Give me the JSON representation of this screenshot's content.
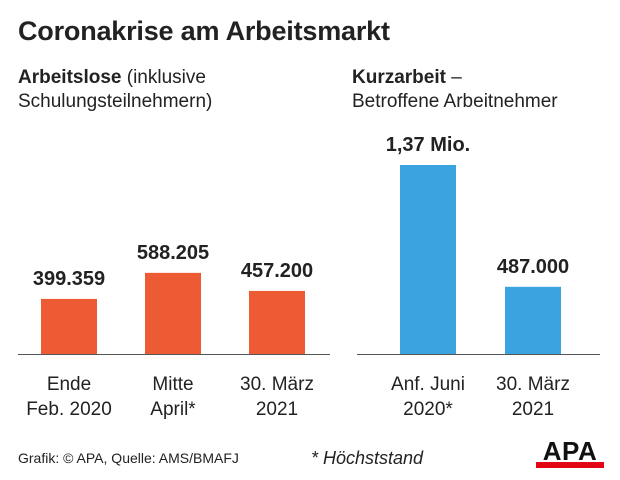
{
  "title": "Coronakrise am Arbeitsmarkt",
  "panels": [
    {
      "title_bold": "Arbeitslose",
      "title_rest_1": " (inklusive",
      "title_line2": "Schulungsteilnehmern)"
    },
    {
      "title_bold": "Kurzarbeit",
      "title_rest_1": " –",
      "title_line2": "Betroffene Arbeitnehmer"
    }
  ],
  "chart_data": [
    {
      "type": "bar",
      "title": "Arbeitslose (inklusive Schulungsteilnehmern)",
      "categories": [
        [
          "Ende",
          "Feb. 2020"
        ],
        [
          "Mitte",
          "April*"
        ],
        [
          "30. März",
          "2021"
        ]
      ],
      "values": [
        399359,
        588205,
        457200
      ],
      "value_labels": [
        "399.359",
        "588.205",
        "457.200"
      ],
      "color": "#ec5b33"
    },
    {
      "type": "bar",
      "title": "Kurzarbeit – Betroffene Arbeitnehmer",
      "categories": [
        [
          "Anf. Juni",
          "2020*"
        ],
        [
          "30. März",
          "2021"
        ]
      ],
      "values": [
        1370000,
        487000
      ],
      "value_labels": [
        "1,37 Mio.",
        "487.000"
      ],
      "color": "#3ba3df"
    }
  ],
  "footer": {
    "source": "Grafik: © APA, Quelle: AMS/BMAFJ",
    "footnote": "* Höchststand"
  },
  "logo": {
    "text": "APA",
    "color": "#e30613"
  }
}
